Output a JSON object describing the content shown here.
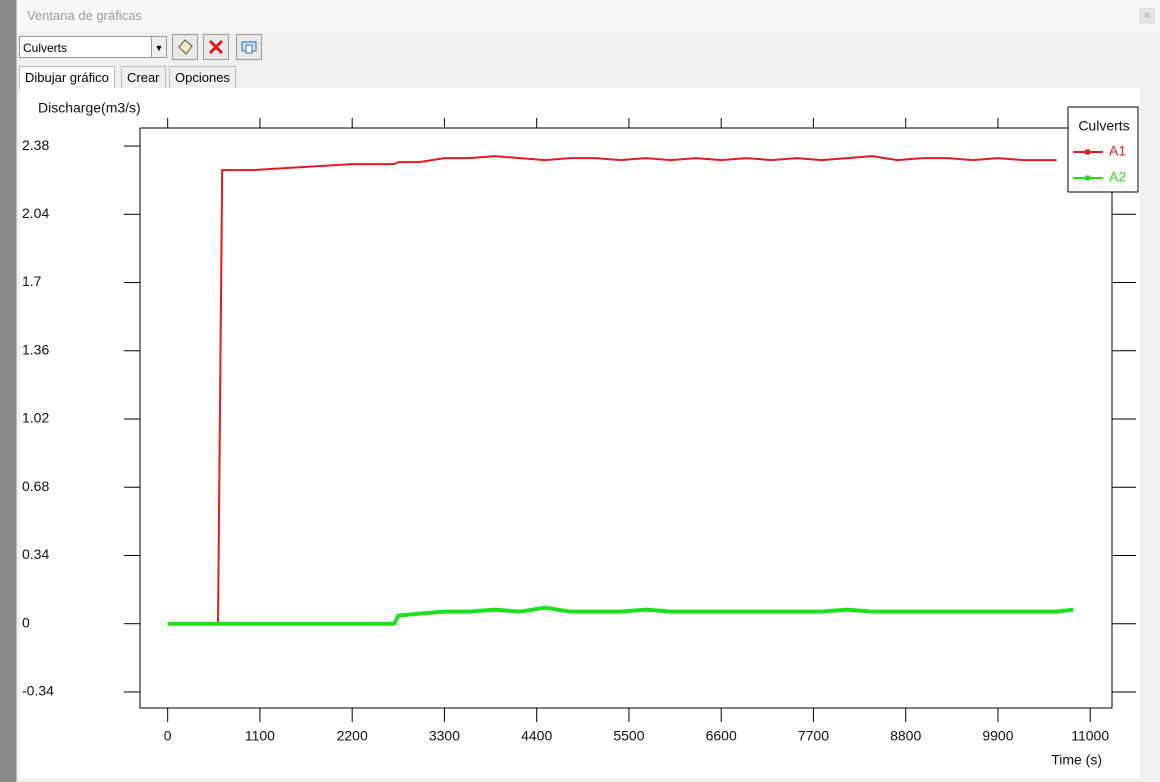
{
  "window": {
    "title": "Ventana de gráficas",
    "dropdown": "Culverts",
    "tabs": [
      "Dibujar gráfico",
      "Crear",
      "Opciones"
    ]
  },
  "chart_data": {
    "type": "line",
    "y_label": "Discharge(m3/s)",
    "x_label": "Time (s)",
    "legend_title": "Culverts",
    "x": [
      0,
      600,
      650,
      1000,
      1400,
      1800,
      2200,
      2700,
      2750,
      3000,
      3300,
      3600,
      3900,
      4200,
      4500,
      4800,
      5100,
      5400,
      5700,
      6000,
      6300,
      6600,
      6900,
      7200,
      7500,
      7800,
      8100,
      8400,
      8700,
      9000,
      9300,
      9600,
      9900,
      10200,
      10600,
      10800
    ],
    "series": [
      {
        "name": "A1",
        "color": "#e31a1c",
        "values": [
          0,
          0,
          2.26,
          2.26,
          2.27,
          2.28,
          2.29,
          2.29,
          2.3,
          2.3,
          2.32,
          2.32,
          2.33,
          2.32,
          2.31,
          2.32,
          2.32,
          2.31,
          2.32,
          2.31,
          2.32,
          2.31,
          2.32,
          2.31,
          2.32,
          2.31,
          2.32,
          2.33,
          2.31,
          2.32,
          2.32,
          2.31,
          2.32,
          2.31,
          2.31,
          null
        ]
      },
      {
        "name": "A2",
        "color": "#1ee01e",
        "values": [
          0,
          0,
          0,
          0,
          0,
          0,
          0,
          0,
          0.04,
          0.05,
          0.06,
          0.06,
          0.07,
          0.06,
          0.08,
          0.06,
          0.06,
          0.06,
          0.07,
          0.06,
          0.06,
          0.06,
          0.06,
          0.06,
          0.06,
          0.06,
          0.07,
          0.06,
          0.06,
          0.06,
          0.06,
          0.06,
          0.06,
          0.06,
          0.06,
          0.07
        ]
      }
    ],
    "xlim": [
      -330,
      11260
    ],
    "ylim": [
      -0.42,
      2.47
    ],
    "xticks": [
      0,
      1100,
      2200,
      3300,
      4400,
      5500,
      6600,
      7700,
      8800,
      9900,
      11000
    ],
    "yticks": [
      -0.34,
      0,
      0.34,
      0.68,
      1.02,
      1.36,
      1.7,
      2.04,
      2.38
    ]
  }
}
